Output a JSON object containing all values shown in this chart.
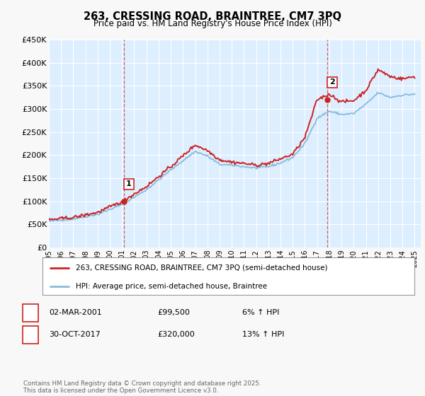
{
  "title": "263, CRESSING ROAD, BRAINTREE, CM7 3PQ",
  "subtitle": "Price paid vs. HM Land Registry's House Price Index (HPI)",
  "bg_color": "#f5f5f5",
  "plot_bg_color": "#ddeeff",
  "grid_color": "#ffffff",
  "red_color": "#cc2222",
  "blue_color": "#88bbdd",
  "ylim": [
    0,
    450000
  ],
  "yticks": [
    0,
    50000,
    100000,
    150000,
    200000,
    250000,
    300000,
    350000,
    400000,
    450000
  ],
  "ytick_labels": [
    "£0",
    "£50K",
    "£100K",
    "£150K",
    "£200K",
    "£250K",
    "£300K",
    "£350K",
    "£400K",
    "£450K"
  ],
  "xtick_years": [
    1995,
    1996,
    1997,
    1998,
    1999,
    2000,
    2001,
    2002,
    2003,
    2004,
    2005,
    2006,
    2007,
    2008,
    2009,
    2010,
    2011,
    2012,
    2013,
    2014,
    2015,
    2016,
    2017,
    2018,
    2019,
    2020,
    2021,
    2022,
    2023,
    2024,
    2025
  ],
  "marker1_x": 2001.16,
  "marker1_y": 99500,
  "marker1_label": "1",
  "marker1_date": "02-MAR-2001",
  "marker1_price": "£99,500",
  "marker1_hpi": "6% ↑ HPI",
  "marker2_x": 2017.83,
  "marker2_y": 320000,
  "marker2_label": "2",
  "marker2_date": "30-OCT-2017",
  "marker2_price": "£320,000",
  "marker2_hpi": "13% ↑ HPI",
  "legend_line1": "263, CRESSING ROAD, BRAINTREE, CM7 3PQ (semi-detached house)",
  "legend_line2": "HPI: Average price, semi-detached house, Braintree",
  "footer": "Contains HM Land Registry data © Crown copyright and database right 2025.\nThis data is licensed under the Open Government Licence v3.0.",
  "hpi_anchors_x": [
    1995,
    1997,
    1999,
    2001,
    2003,
    2005,
    2007,
    2008,
    2009,
    2010,
    2011,
    2012,
    2013,
    2014,
    2015,
    2016,
    2017,
    2018,
    2019,
    2020,
    2021,
    2022,
    2023,
    2024,
    2025
  ],
  "hpi_anchors_y": [
    57000,
    62000,
    72000,
    93000,
    125000,
    168000,
    208000,
    198000,
    180000,
    178000,
    175000,
    172000,
    175000,
    183000,
    195000,
    225000,
    280000,
    295000,
    288000,
    290000,
    310000,
    335000,
    325000,
    330000,
    332000
  ],
  "price_anchors_x": [
    1995,
    1997,
    1999,
    2001,
    2003,
    2005,
    2007,
    2008,
    2009,
    2010,
    2011,
    2012,
    2013,
    2014,
    2015,
    2016,
    2017,
    2018,
    2019,
    2020,
    2021,
    2022,
    2023,
    2024,
    2025
  ],
  "price_anchors_y": [
    60000,
    65000,
    76000,
    99500,
    132000,
    175000,
    222000,
    210000,
    190000,
    185000,
    182000,
    178000,
    182000,
    192000,
    202000,
    238000,
    320000,
    332000,
    315000,
    318000,
    340000,
    385000,
    370000,
    365000,
    370000
  ]
}
